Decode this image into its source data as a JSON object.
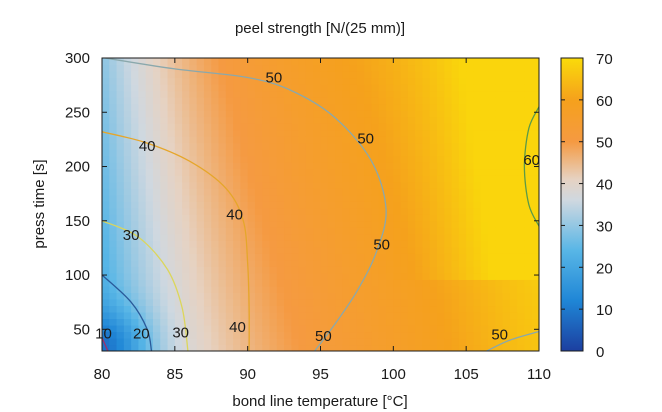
{
  "chart_data": {
    "type": "heatmap",
    "title": "peel strength [N/(25 mm)]",
    "xlabel": "bond line temperature [°C]",
    "ylabel": "press time [s]",
    "xlim": [
      80,
      110
    ],
    "ylim": [
      30,
      300
    ],
    "xticks": [
      80,
      85,
      90,
      95,
      100,
      105,
      110
    ],
    "yticks": [
      50,
      100,
      150,
      200,
      250,
      300
    ],
    "colorbar": {
      "range": [
        0,
        70
      ],
      "ticks": [
        0,
        10,
        20,
        30,
        40,
        50,
        60,
        70
      ],
      "colors": [
        {
          "v": 0,
          "c": "#1c3fa0"
        },
        {
          "v": 12,
          "c": "#1f86d6"
        },
        {
          "v": 24,
          "c": "#58b6e6"
        },
        {
          "v": 36,
          "c": "#cfd8e0"
        },
        {
          "v": 41,
          "c": "#e6d2c2"
        },
        {
          "v": 50,
          "c": "#f59a42"
        },
        {
          "v": 60,
          "c": "#f5a11c"
        },
        {
          "v": 70,
          "c": "#fadb0a"
        }
      ]
    },
    "grid": false,
    "contours": [
      {
        "level": 50,
        "color": "#8aa8ac",
        "points": [
          [
            80.2,
            300
          ],
          [
            85,
            290
          ],
          [
            90,
            282
          ],
          [
            93,
            270
          ],
          [
            96,
            245
          ],
          [
            98.5,
            205
          ],
          [
            99.5,
            160
          ],
          [
            98.8,
            120
          ],
          [
            97.5,
            85
          ],
          [
            96,
            55
          ],
          [
            94.6,
            30
          ]
        ]
      },
      {
        "level": 50,
        "color": "#8aa8ac",
        "points": [
          [
            106.4,
            30
          ],
          [
            108,
            40
          ],
          [
            110,
            48
          ]
        ]
      },
      {
        "level": 60,
        "color": "#5a9a48",
        "points": [
          [
            110,
            255
          ],
          [
            109.3,
            235
          ],
          [
            109,
            200
          ],
          [
            109.3,
            165
          ],
          [
            110,
            145
          ]
        ]
      },
      {
        "level": 40,
        "color": "#e6a62a",
        "points": [
          [
            80,
            232
          ],
          [
            83,
            222
          ],
          [
            86,
            205
          ],
          [
            88.5,
            180
          ],
          [
            89.7,
            150
          ],
          [
            90,
            110
          ],
          [
            90.1,
            70
          ],
          [
            90.1,
            30
          ]
        ]
      },
      {
        "level": 30,
        "color": "#dcd65a",
        "points": [
          [
            80,
            150
          ],
          [
            82.5,
            135
          ],
          [
            84.5,
            105
          ],
          [
            85.5,
            70
          ],
          [
            85.9,
            30
          ]
        ]
      },
      {
        "level": 20,
        "color": "#2a5a9a",
        "points": [
          [
            80,
            100
          ],
          [
            82,
            75
          ],
          [
            83.1,
            50
          ],
          [
            83.4,
            30
          ]
        ]
      },
      {
        "level": 10,
        "color": "#a0306a",
        "points": [
          [
            80,
            42
          ],
          [
            80.4,
            30
          ]
        ]
      }
    ],
    "contour_labels": [
      {
        "text": "50",
        "x": 91.8,
        "y": 282
      },
      {
        "text": "50",
        "x": 98.1,
        "y": 226
      },
      {
        "text": "50",
        "x": 99.2,
        "y": 128
      },
      {
        "text": "50",
        "x": 95.2,
        "y": 44
      },
      {
        "text": "50",
        "x": 107.3,
        "y": 45
      },
      {
        "text": "60",
        "x": 109.5,
        "y": 206
      },
      {
        "text": "40",
        "x": 83.1,
        "y": 219
      },
      {
        "text": "40",
        "x": 89.1,
        "y": 156
      },
      {
        "text": "40",
        "x": 89.3,
        "y": 52
      },
      {
        "text": "30",
        "x": 82.0,
        "y": 137
      },
      {
        "text": "30",
        "x": 85.4,
        "y": 47
      },
      {
        "text": "20",
        "x": 82.7,
        "y": 46
      },
      {
        "text": "10",
        "x": 80.1,
        "y": 46
      }
    ]
  }
}
